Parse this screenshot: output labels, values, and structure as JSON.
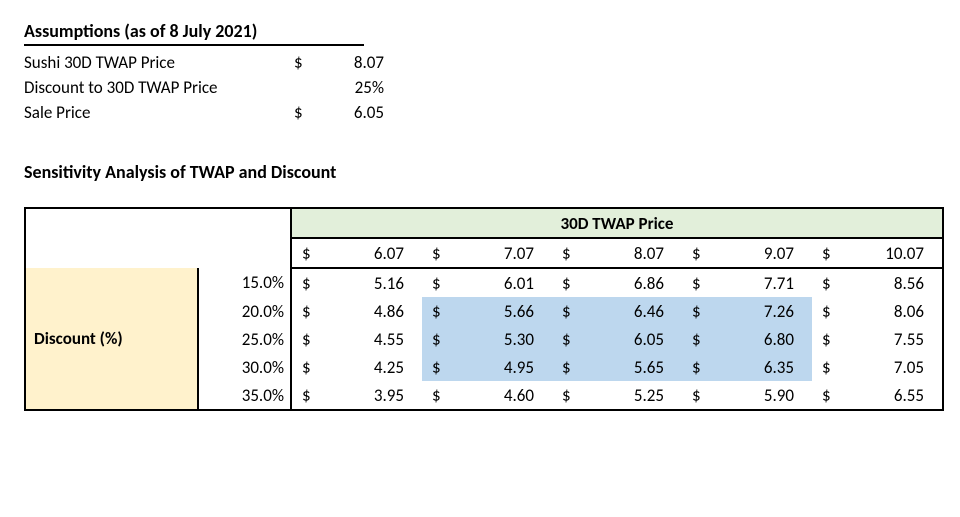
{
  "assumptions": {
    "title": "Assumptions (as of 8 July 2021)",
    "rows": [
      {
        "label": "Sushi 30D TWAP Price",
        "symbol": "$",
        "value": "8.07"
      },
      {
        "label": "Discount to 30D TWAP Price",
        "symbol": "",
        "value": "25%"
      },
      {
        "label": "Sale Price",
        "symbol": "$",
        "value": "6.05"
      }
    ]
  },
  "sensitivity": {
    "title": "Sensitivity Analysis of TWAP and Discount",
    "col_header": "30D TWAP Price",
    "row_header": "Discount (%)",
    "prices": [
      "6.07",
      "7.07",
      "8.07",
      "9.07",
      "10.07"
    ],
    "discounts": [
      "15.0%",
      "20.0%",
      "25.0%",
      "30.0%",
      "35.0%"
    ],
    "cells": [
      [
        "5.16",
        "6.01",
        "6.86",
        "7.71",
        "8.56"
      ],
      [
        "4.86",
        "5.66",
        "6.46",
        "7.26",
        "8.06"
      ],
      [
        "4.55",
        "5.30",
        "6.05",
        "6.80",
        "7.55"
      ],
      [
        "4.25",
        "4.95",
        "5.65",
        "6.35",
        "7.05"
      ],
      [
        "3.95",
        "4.60",
        "5.25",
        "5.90",
        "6.55"
      ]
    ],
    "highlight": [
      [
        false,
        false,
        false,
        false,
        false
      ],
      [
        false,
        true,
        true,
        true,
        false
      ],
      [
        false,
        true,
        true,
        true,
        false
      ],
      [
        false,
        true,
        true,
        true,
        false
      ],
      [
        false,
        false,
        false,
        false,
        false
      ]
    ],
    "colors": {
      "twap_header_bg": "#e2efda",
      "discount_label_bg": "#fff2cc",
      "highlight_bg": "#bdd7ee",
      "border": "#000000"
    }
  }
}
